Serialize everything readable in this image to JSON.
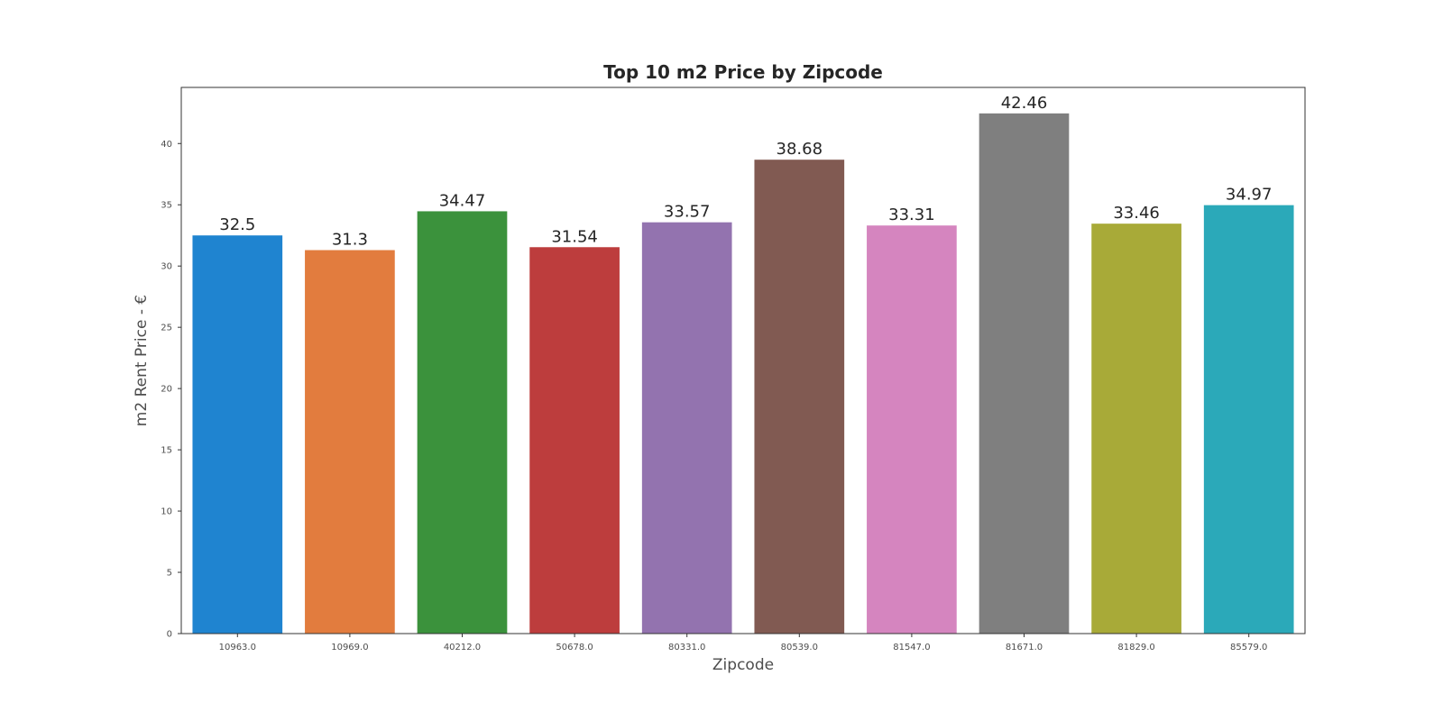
{
  "chart_data": {
    "type": "bar",
    "title": "Top 10 m2 Price by Zipcode",
    "xlabel": "Zipcode",
    "ylabel": "m2 Rent Price - €",
    "categories": [
      "10963.0",
      "10969.0",
      "40212.0",
      "50678.0",
      "80331.0",
      "80539.0",
      "81547.0",
      "81671.0",
      "81829.0",
      "85579.0"
    ],
    "values": [
      32.5,
      31.3,
      34.47,
      31.54,
      33.57,
      38.68,
      33.31,
      42.46,
      33.46,
      34.97
    ],
    "data_labels": [
      "32.5",
      "31.3",
      "34.47",
      "31.54",
      "33.57",
      "38.68",
      "33.31",
      "42.46",
      "33.46",
      "34.97"
    ],
    "colors": [
      "#1f84d0",
      "#e27c3e",
      "#3b923c",
      "#bd3d3d",
      "#9373af",
      "#815a52",
      "#d585bf",
      "#7f7f7f",
      "#a8aa38",
      "#2ba9b9"
    ],
    "ylim": [
      0,
      44.58
    ],
    "yticks": [
      0,
      5,
      10,
      15,
      20,
      25,
      30,
      35,
      40
    ],
    "grid": false,
    "legend": "none"
  }
}
